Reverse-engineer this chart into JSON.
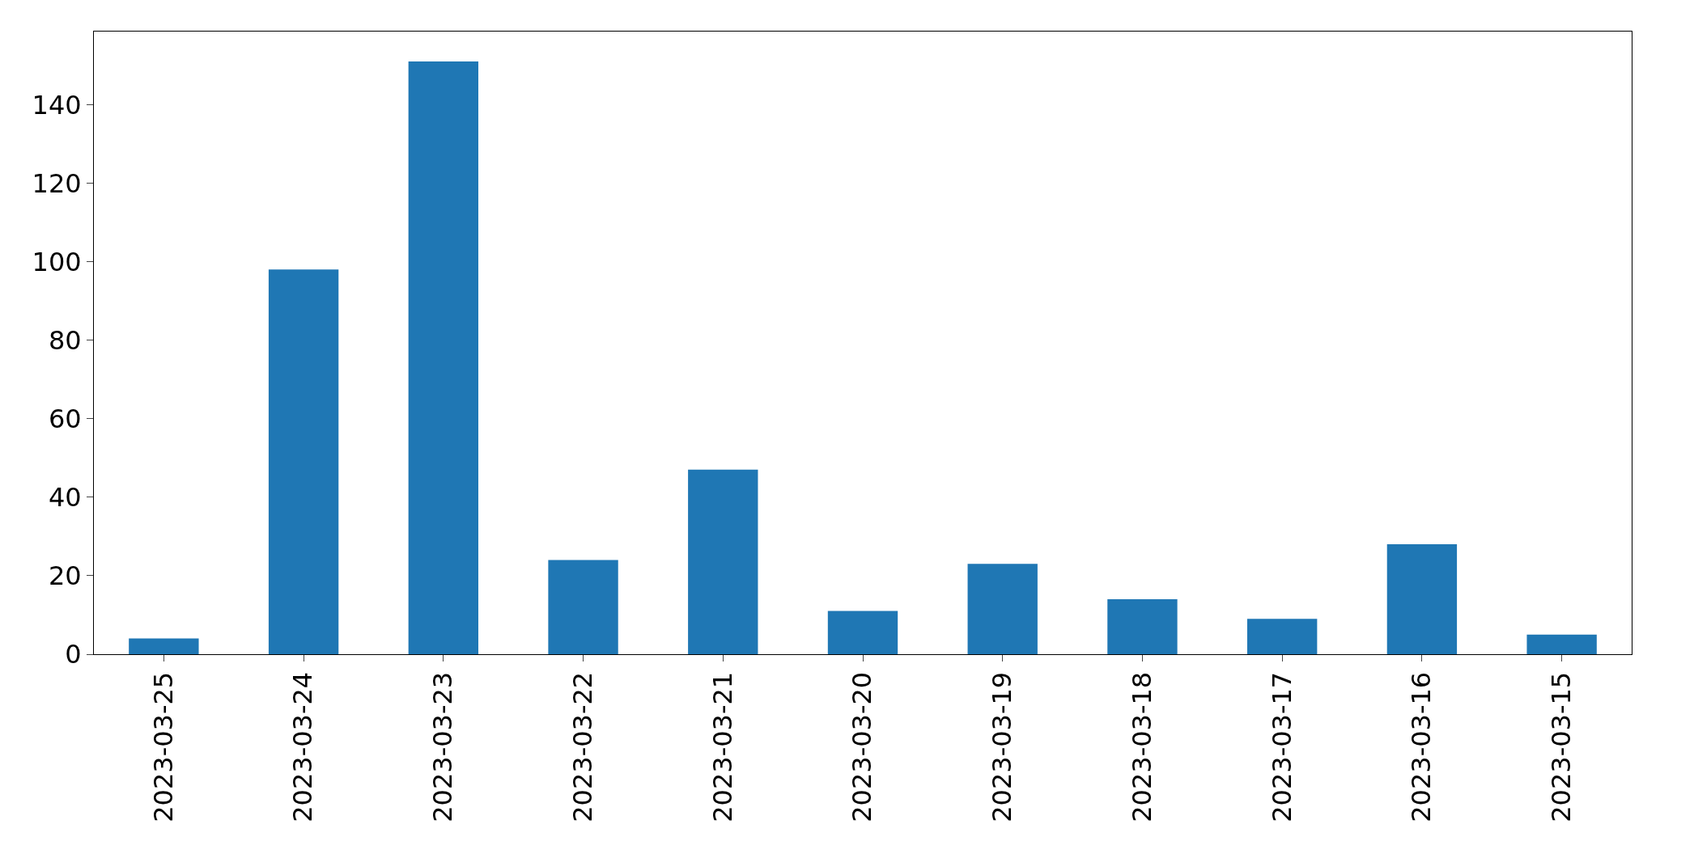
{
  "chart_data": {
    "type": "bar",
    "categories": [
      "2023-03-25",
      "2023-03-24",
      "2023-03-23",
      "2023-03-22",
      "2023-03-21",
      "2023-03-20",
      "2023-03-19",
      "2023-03-18",
      "2023-03-17",
      "2023-03-16",
      "2023-03-15"
    ],
    "values": [
      4,
      98,
      151,
      24,
      47,
      11,
      23,
      14,
      9,
      28,
      5
    ],
    "color": "#1f77b4",
    "ylim": [
      0,
      158.6
    ],
    "yticks": [
      0,
      20,
      40,
      60,
      80,
      100,
      120,
      140
    ],
    "grid": false
  }
}
